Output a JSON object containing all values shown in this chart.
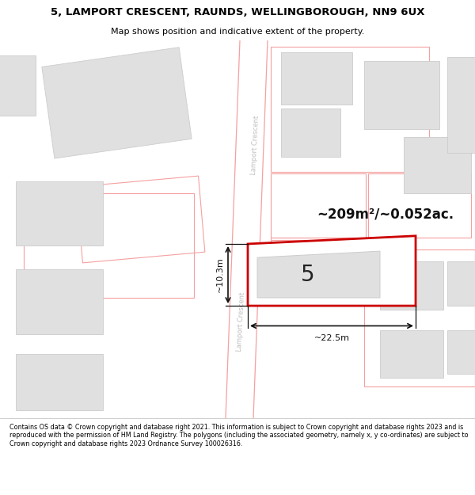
{
  "title_line1": "5, LAMPORT CRESCENT, RAUNDS, WELLINGBOROUGH, NN9 6UX",
  "title_line2": "Map shows position and indicative extent of the property.",
  "footer_text": "Contains OS data © Crown copyright and database right 2021. This information is subject to Crown copyright and database rights 2023 and is reproduced with the permission of HM Land Registry. The polygons (including the associated geometry, namely x, y co-ordinates) are subject to Crown copyright and database rights 2023 Ordnance Survey 100026316.",
  "area_text": "~209m²/~0.052ac.",
  "property_number": "5",
  "dim_width": "~22.5m",
  "dim_height": "~10.3m",
  "bg_color": "#ffffff",
  "map_bg": "#ffffff",
  "road_color": "#ffffff",
  "road_border_color": "#f5a0a0",
  "highlight_color": "#cc0000",
  "building_fill": "#e0e0e0",
  "building_stroke": "#cccccc",
  "plot_stroke": "#f5a0a0",
  "road_label": "Lamport Crescent",
  "road_label_color": "#c0c0c0"
}
